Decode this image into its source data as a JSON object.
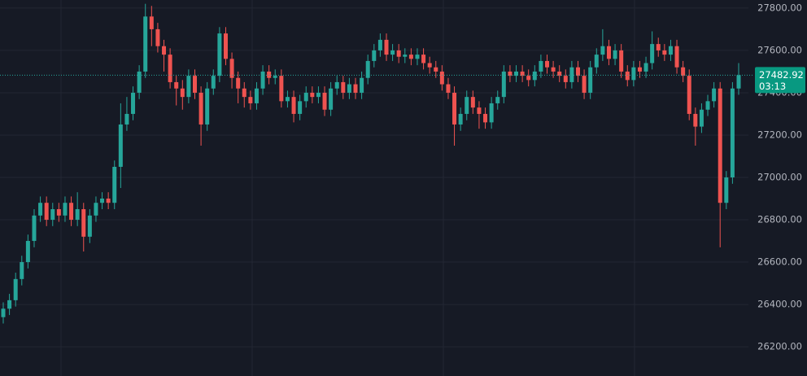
{
  "chart_data": {
    "type": "candlestick",
    "up_color": "#26a69a",
    "down_color": "#ef5350",
    "grid": true,
    "ylim": [
      26062,
      27838
    ],
    "yticks": [
      {
        "value": 26200,
        "label": "26200.00"
      },
      {
        "value": 26400,
        "label": "26400.00"
      },
      {
        "value": 26600,
        "label": "26600.00"
      },
      {
        "value": 26800,
        "label": "26800.00"
      },
      {
        "value": 27000,
        "label": "27000.00"
      },
      {
        "value": 27200,
        "label": "27200.00"
      },
      {
        "value": 27400,
        "label": "27400.00"
      },
      {
        "value": 27600,
        "label": "27600.00"
      },
      {
        "value": 27800,
        "label": "27800.00"
      }
    ],
    "last_price": 27482.92,
    "countdown": "03:13",
    "open": [
      26340,
      26380,
      26420,
      26520,
      26600,
      26700,
      26820,
      26880,
      26800,
      26850,
      26820,
      26880,
      26800,
      26850,
      26720,
      26820,
      26880,
      26900,
      26880,
      27050,
      27250,
      27300,
      27400,
      27500,
      27760,
      27700,
      27620,
      27580,
      27450,
      27420,
      27380,
      27480,
      27400,
      27250,
      27420,
      27480,
      27680,
      27560,
      27470,
      27420,
      27380,
      27350,
      27420,
      27500,
      27470,
      27480,
      27360,
      27380,
      27300,
      27360,
      27400,
      27380,
      27400,
      27320,
      27420,
      27450,
      27400,
      27440,
      27400,
      27470,
      27550,
      27600,
      27650,
      27580,
      27600,
      27570,
      27580,
      27560,
      27580,
      27540,
      27520,
      27500,
      27440,
      27400,
      27250,
      27300,
      27380,
      27330,
      27300,
      27260,
      27350,
      27380,
      27500,
      27480,
      27500,
      27480,
      27460,
      27500,
      27550,
      27520,
      27500,
      27480,
      27450,
      27520,
      27480,
      27400,
      27520,
      27580,
      27620,
      27560,
      27600,
      27500,
      27460,
      27520,
      27500,
      27540,
      27630,
      27600,
      27580,
      27620,
      27520,
      27480,
      27300,
      27240,
      27320,
      27360,
      27420,
      26880,
      27000,
      27420
    ],
    "high": [
      26410,
      26450,
      26550,
      26630,
      26730,
      26850,
      26910,
      26910,
      26880,
      26880,
      26910,
      26910,
      26930,
      26880,
      26850,
      26910,
      26930,
      26930,
      27080,
      27350,
      27380,
      27430,
      27530,
      27820,
      27810,
      27730,
      27650,
      27610,
      27480,
      27460,
      27510,
      27510,
      27430,
      27450,
      27510,
      27710,
      27710,
      27590,
      27500,
      27450,
      27410,
      27450,
      27530,
      27530,
      27510,
      27510,
      27410,
      27410,
      27390,
      27430,
      27430,
      27430,
      27430,
      27450,
      27480,
      27480,
      27470,
      27470,
      27500,
      27580,
      27630,
      27680,
      27680,
      27630,
      27630,
      27610,
      27610,
      27610,
      27610,
      27570,
      27550,
      27530,
      27470,
      27430,
      27330,
      27410,
      27410,
      27360,
      27330,
      27380,
      27410,
      27530,
      27530,
      27530,
      27530,
      27510,
      27530,
      27580,
      27580,
      27550,
      27530,
      27510,
      27550,
      27550,
      27510,
      27550,
      27610,
      27700,
      27650,
      27630,
      27630,
      27530,
      27550,
      27550,
      27570,
      27690,
      27660,
      27630,
      27650,
      27650,
      27550,
      27510,
      27330,
      27350,
      27390,
      27450,
      27450,
      27030,
      27450,
      27540
    ],
    "low": [
      26310,
      26350,
      26390,
      26490,
      26570,
      26670,
      26790,
      26770,
      26770,
      26790,
      26790,
      26770,
      26770,
      26650,
      26690,
      26790,
      26850,
      26850,
      26850,
      26950,
      27220,
      27270,
      27370,
      27470,
      27620,
      27590,
      27500,
      27420,
      27340,
      27320,
      27350,
      27370,
      27150,
      27220,
      27390,
      27450,
      27530,
      27420,
      27350,
      27330,
      27320,
      27320,
      27390,
      27440,
      27440,
      27330,
      27330,
      27260,
      27270,
      27330,
      27350,
      27350,
      27290,
      27290,
      27390,
      27370,
      27370,
      27370,
      27370,
      27440,
      27520,
      27570,
      27550,
      27550,
      27540,
      27540,
      27530,
      27530,
      27510,
      27490,
      27470,
      27410,
      27370,
      27150,
      27220,
      27270,
      27300,
      27230,
      27230,
      27230,
      27320,
      27350,
      27450,
      27450,
      27450,
      27430,
      27430,
      27470,
      27490,
      27470,
      27450,
      27420,
      27420,
      27450,
      27370,
      27370,
      27490,
      27550,
      27530,
      27530,
      27470,
      27430,
      27430,
      27470,
      27470,
      27510,
      27570,
      27550,
      27550,
      27490,
      27450,
      27270,
      27150,
      27210,
      27290,
      27330,
      26670,
      26850,
      26970,
      27390
    ],
    "close": [
      26380,
      26420,
      26520,
      26600,
      26700,
      26820,
      26880,
      26800,
      26850,
      26820,
      26880,
      26800,
      26850,
      26720,
      26820,
      26880,
      26900,
      26880,
      27050,
      27250,
      27300,
      27400,
      27500,
      27760,
      27700,
      27620,
      27580,
      27450,
      27420,
      27380,
      27480,
      27400,
      27250,
      27420,
      27480,
      27680,
      27560,
      27470,
      27420,
      27380,
      27350,
      27420,
      27500,
      27470,
      27480,
      27360,
      27380,
      27300,
      27360,
      27400,
      27380,
      27400,
      27320,
      27420,
      27450,
      27400,
      27440,
      27400,
      27470,
      27550,
      27600,
      27650,
      27580,
      27600,
      27570,
      27580,
      27560,
      27580,
      27540,
      27520,
      27500,
      27440,
      27400,
      27250,
      27300,
      27380,
      27330,
      27300,
      27260,
      27350,
      27380,
      27500,
      27480,
      27500,
      27480,
      27460,
      27500,
      27550,
      27520,
      27500,
      27480,
      27450,
      27520,
      27480,
      27400,
      27520,
      27580,
      27620,
      27560,
      27600,
      27500,
      27460,
      27520,
      27500,
      27540,
      27630,
      27600,
      27580,
      27620,
      27520,
      27480,
      27300,
      27240,
      27320,
      27360,
      27420,
      26880,
      27000,
      27420,
      27482.92
    ]
  }
}
